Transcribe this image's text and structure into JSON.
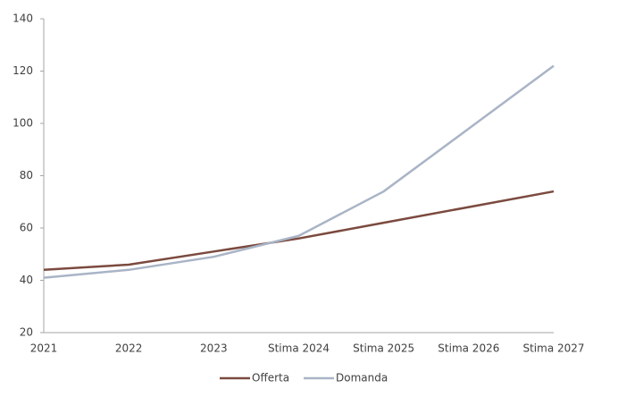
{
  "chart_data": {
    "type": "line",
    "categories": [
      "2021",
      "2022",
      "2023",
      "Stima 2024",
      "Stima 2025",
      "Stima 2026",
      "Stima 2027"
    ],
    "series": [
      {
        "name": "Offerta",
        "color": "#7b4a3f",
        "values": [
          44,
          46,
          51,
          56,
          62,
          68,
          74
        ]
      },
      {
        "name": "Domanda",
        "color": "#a9b4c6",
        "values": [
          41,
          44,
          49,
          57,
          74,
          98,
          122
        ]
      }
    ],
    "ylim": [
      20,
      140
    ],
    "yticks": [
      20,
      40,
      60,
      80,
      100,
      120,
      140
    ],
    "grid": false,
    "legend": "bottom"
  }
}
